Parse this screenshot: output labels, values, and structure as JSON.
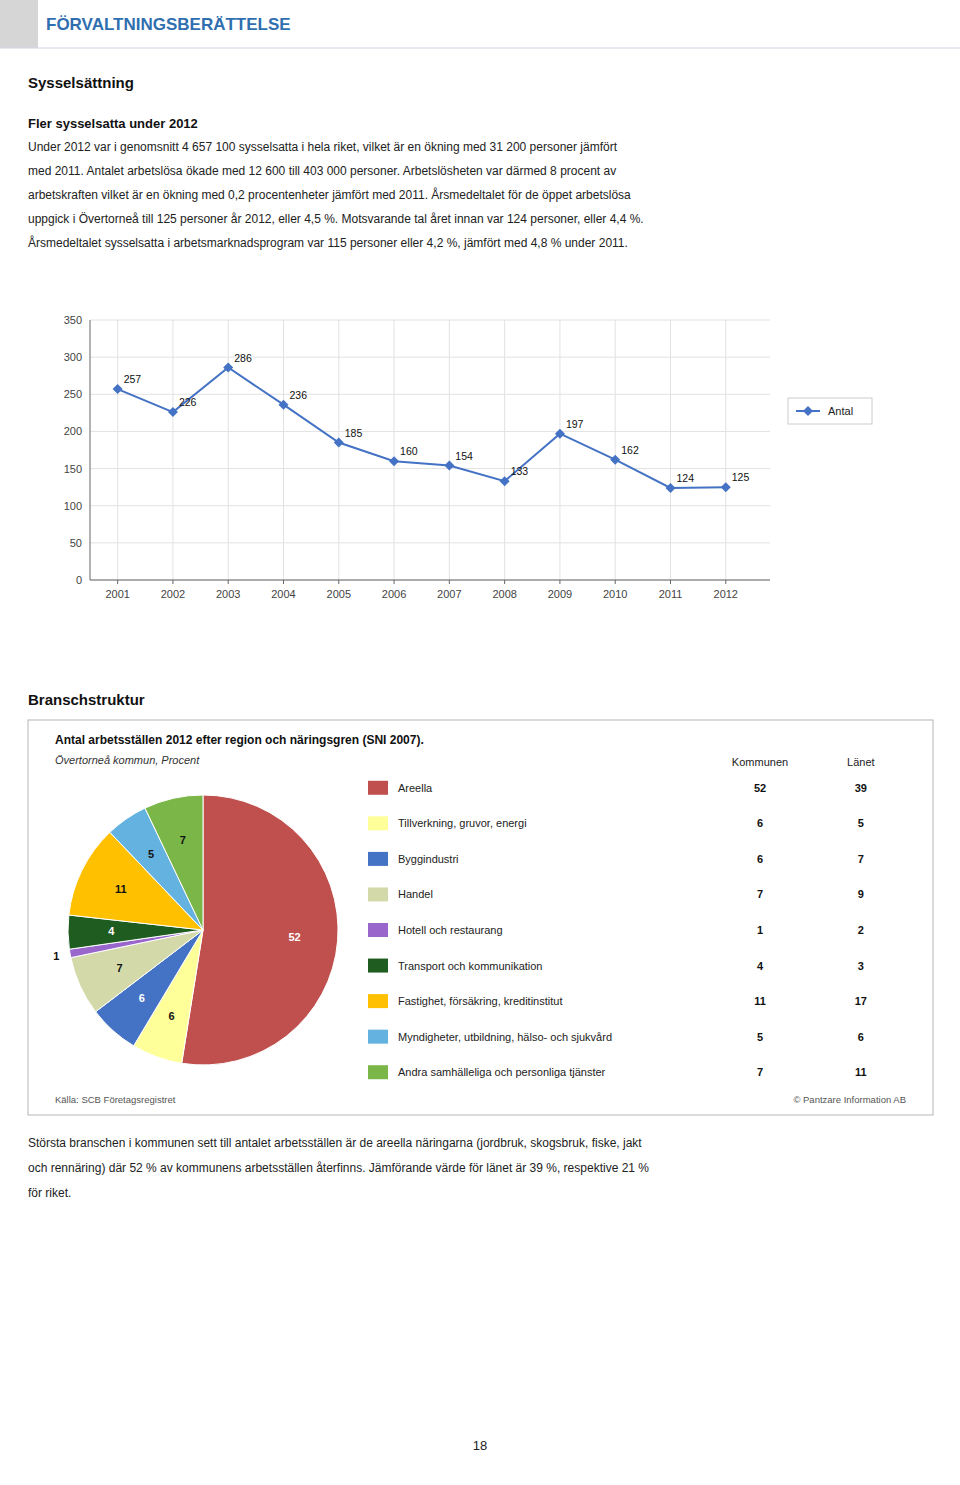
{
  "header": "FÖRVALTNINGSBERÄTTELSE",
  "section1_title": "Sysselsättning",
  "section1_subtitle": "Fler sysselsatta under 2012",
  "section1_body": [
    "Under 2012 var i genomsnitt 4 657 100 sysselsatta i hela riket, vilket är en ökning med 31 200 personer jämfört",
    "med 2011. Antalet arbetslösa ökade med 12 600 till 403 000 personer. Arbetslösheten var därmed 8 procent av",
    "arbetskraften vilket är en ökning med 0,2 procentenheter jämfört med 2011. Årsmedeltalet för de öppet arbetslösa",
    "uppgick i Övertorneå till 125 personer år 2012, eller 4,5 %. Motsvarande tal året innan var 124 personer, eller 4,4 %.",
    "Årsmedeltalet sysselsatta i arbetsmarknadsprogram var 115 personer eller 4,2 %, jämfört med 4,8 % under 2011."
  ],
  "section2_title": "Branschstruktur",
  "section3_body": [
    "Största branschen i kommunen sett till antalet arbetsställen är de areella näringarna (jordbruk, skogsbruk, fiske, jakt",
    "och rennäring) där 52 % av kommunens arbetsställen återfinns. Jämförande värde för länet är 39 %, respektive 21 %",
    "för riket."
  ],
  "page_number": "18",
  "chart_data": [
    {
      "type": "line",
      "x": [
        2001,
        2002,
        2003,
        2004,
        2005,
        2006,
        2007,
        2008,
        2009,
        2010,
        2011,
        2012
      ],
      "xlim": [
        2000.5,
        2012.8
      ],
      "xticks": [
        2001,
        2002,
        2003,
        2004,
        2005,
        2006,
        2007,
        2008,
        2009,
        2010,
        2011,
        2012
      ],
      "ylim": [
        0,
        350
      ],
      "yticks": [
        0,
        50,
        100,
        150,
        200,
        250,
        300,
        350
      ],
      "series": [
        {
          "name": "Antal",
          "color": "#4472C4",
          "marker": "diamond",
          "values": [
            257,
            226,
            286,
            236,
            185,
            160,
            154,
            133,
            197,
            162,
            124,
            125
          ]
        }
      ],
      "grid": true,
      "legend": "right",
      "data_labels": true
    },
    {
      "type": "pie",
      "title": "Antal arbetsställen 2012 efter region och näringsgren (SNI 2007).",
      "subtitle": "Övertorneå kommun, Procent",
      "categories": [
        "Areella",
        "Tillverkning, gruvor, energi",
        "Byggindustri",
        "Handel",
        "Hotell och restaurang",
        "Transport och kommunikation",
        "Fastighet, försäkring, kreditinstitut",
        "Myndigheter, utbildning, hälso- och sjukvård",
        "Andra samhälleliga och personliga tjänster"
      ],
      "series": [
        {
          "name": "Kommunen",
          "values": [
            52,
            6,
            6,
            7,
            1,
            4,
            11,
            5,
            7
          ]
        },
        {
          "name": "Länet",
          "values": [
            39,
            5,
            7,
            9,
            2,
            3,
            17,
            6,
            11
          ]
        }
      ],
      "colors": [
        "#C0504D",
        "#FFFF99",
        "#4472C4",
        "#D3D9A8",
        "#9966CC",
        "#1F5C1F",
        "#FFC000",
        "#63B2E0",
        "#7AB648"
      ],
      "data_labels": true,
      "annotations": [
        "Källa: SCB Företagsregistret",
        "© Pantzare Information AB"
      ]
    }
  ]
}
